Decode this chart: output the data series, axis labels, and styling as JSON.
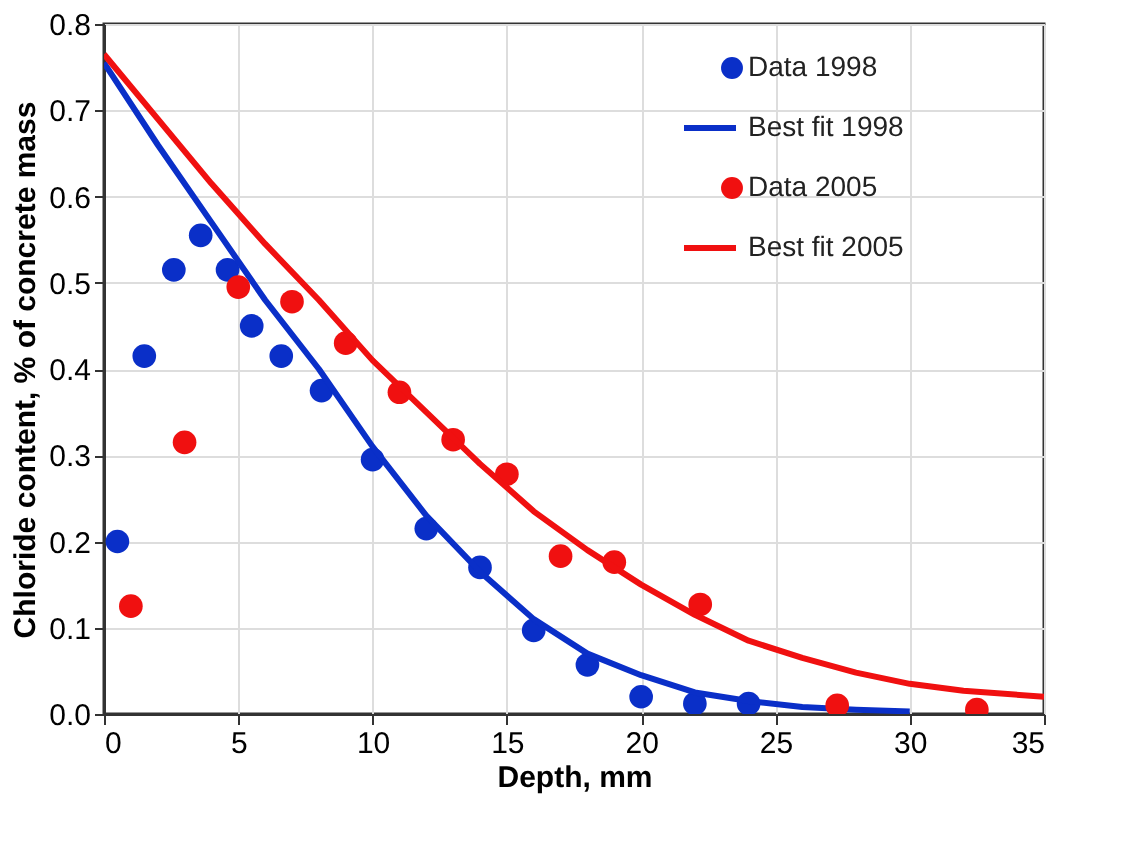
{
  "chart_data": {
    "type": "scatter",
    "xlabel": "Depth, mm",
    "ylabel": "Chloride content, % of concrete mass",
    "xlim": [
      0,
      35
    ],
    "xticks": [
      0,
      5,
      10,
      15,
      20,
      25,
      30,
      35
    ],
    "ylim": [
      0,
      0.8
    ],
    "yticks": [
      {
        "value": 0,
        "label": "0.0"
      },
      0.1,
      0.2,
      0.3,
      0.4,
      0.5,
      0.6,
      0.7,
      0.8
    ],
    "grid": true,
    "legend": "top right",
    "marker": "circle",
    "line_style": "solid",
    "series": [
      {
        "name": "Data 1998",
        "color": "#0a2fc8",
        "x": [
          0.5,
          1.5,
          2.6,
          3.6,
          4.6,
          5.5,
          6.6,
          8.1,
          10,
          12,
          14,
          16,
          18,
          20,
          22,
          24
        ],
        "values": [
          0.2,
          0.415,
          0.515,
          0.555,
          0.515,
          0.45,
          0.415,
          0.375,
          0.295,
          0.215,
          0.17,
          0.097,
          0.057,
          0.02,
          0.012,
          0.012
        ]
      },
      {
        "name": "Best fit 1998",
        "type": "line",
        "marker": "none",
        "color": "#0a2fc8",
        "x": [
          0,
          2,
          4,
          5,
          6,
          8,
          10,
          12,
          14,
          16,
          18,
          20,
          22,
          24,
          26,
          28,
          30
        ],
        "values": [
          0.755,
          0.66,
          0.57,
          0.525,
          0.48,
          0.4,
          0.31,
          0.23,
          0.165,
          0.11,
          0.07,
          0.045,
          0.025,
          0.015,
          0.008,
          0.005,
          0.003
        ]
      },
      {
        "name": "Data 2005",
        "color": "#f01010",
        "x": [
          1,
          3,
          5,
          7,
          9,
          11,
          13,
          15,
          17,
          19,
          22.2,
          27.3,
          32.5
        ],
        "values": [
          0.125,
          0.315,
          0.495,
          0.478,
          0.43,
          0.373,
          0.318,
          0.278,
          0.183,
          0.176,
          0.127,
          0.01,
          0.005
        ]
      },
      {
        "name": "Best fit 2005",
        "type": "line",
        "marker": "none",
        "color": "#f01010",
        "x": [
          0,
          2,
          4,
          6,
          8,
          10,
          12,
          14,
          16,
          18,
          20,
          22,
          24,
          26,
          28,
          30,
          32,
          35
        ],
        "values": [
          0.765,
          0.69,
          0.615,
          0.545,
          0.48,
          0.41,
          0.35,
          0.29,
          0.235,
          0.19,
          0.15,
          0.115,
          0.085,
          0.065,
          0.048,
          0.035,
          0.027,
          0.02
        ]
      }
    ]
  }
}
